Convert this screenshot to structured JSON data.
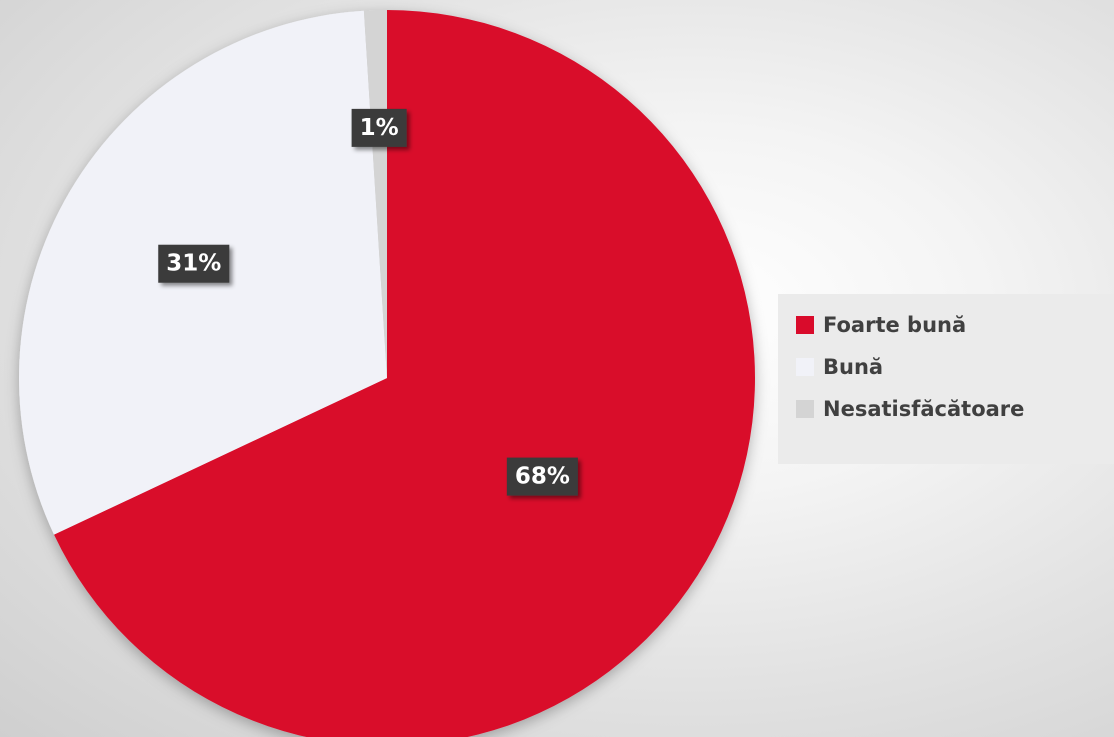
{
  "chart_data": {
    "type": "pie",
    "title": "",
    "series": [
      {
        "name": "Foarte bună",
        "value": 68,
        "label": "68%",
        "color": "#d90b2b"
      },
      {
        "name": "Bună",
        "value": 31,
        "label": "31%",
        "color": "#f1f2f8"
      },
      {
        "name": "Nesatisfăcătoare",
        "value": 1,
        "label": "1%",
        "color": "#d4d4d4"
      }
    ],
    "legend_position": "right",
    "label_background": "#3a3a3a",
    "label_color": "#ffffff"
  }
}
